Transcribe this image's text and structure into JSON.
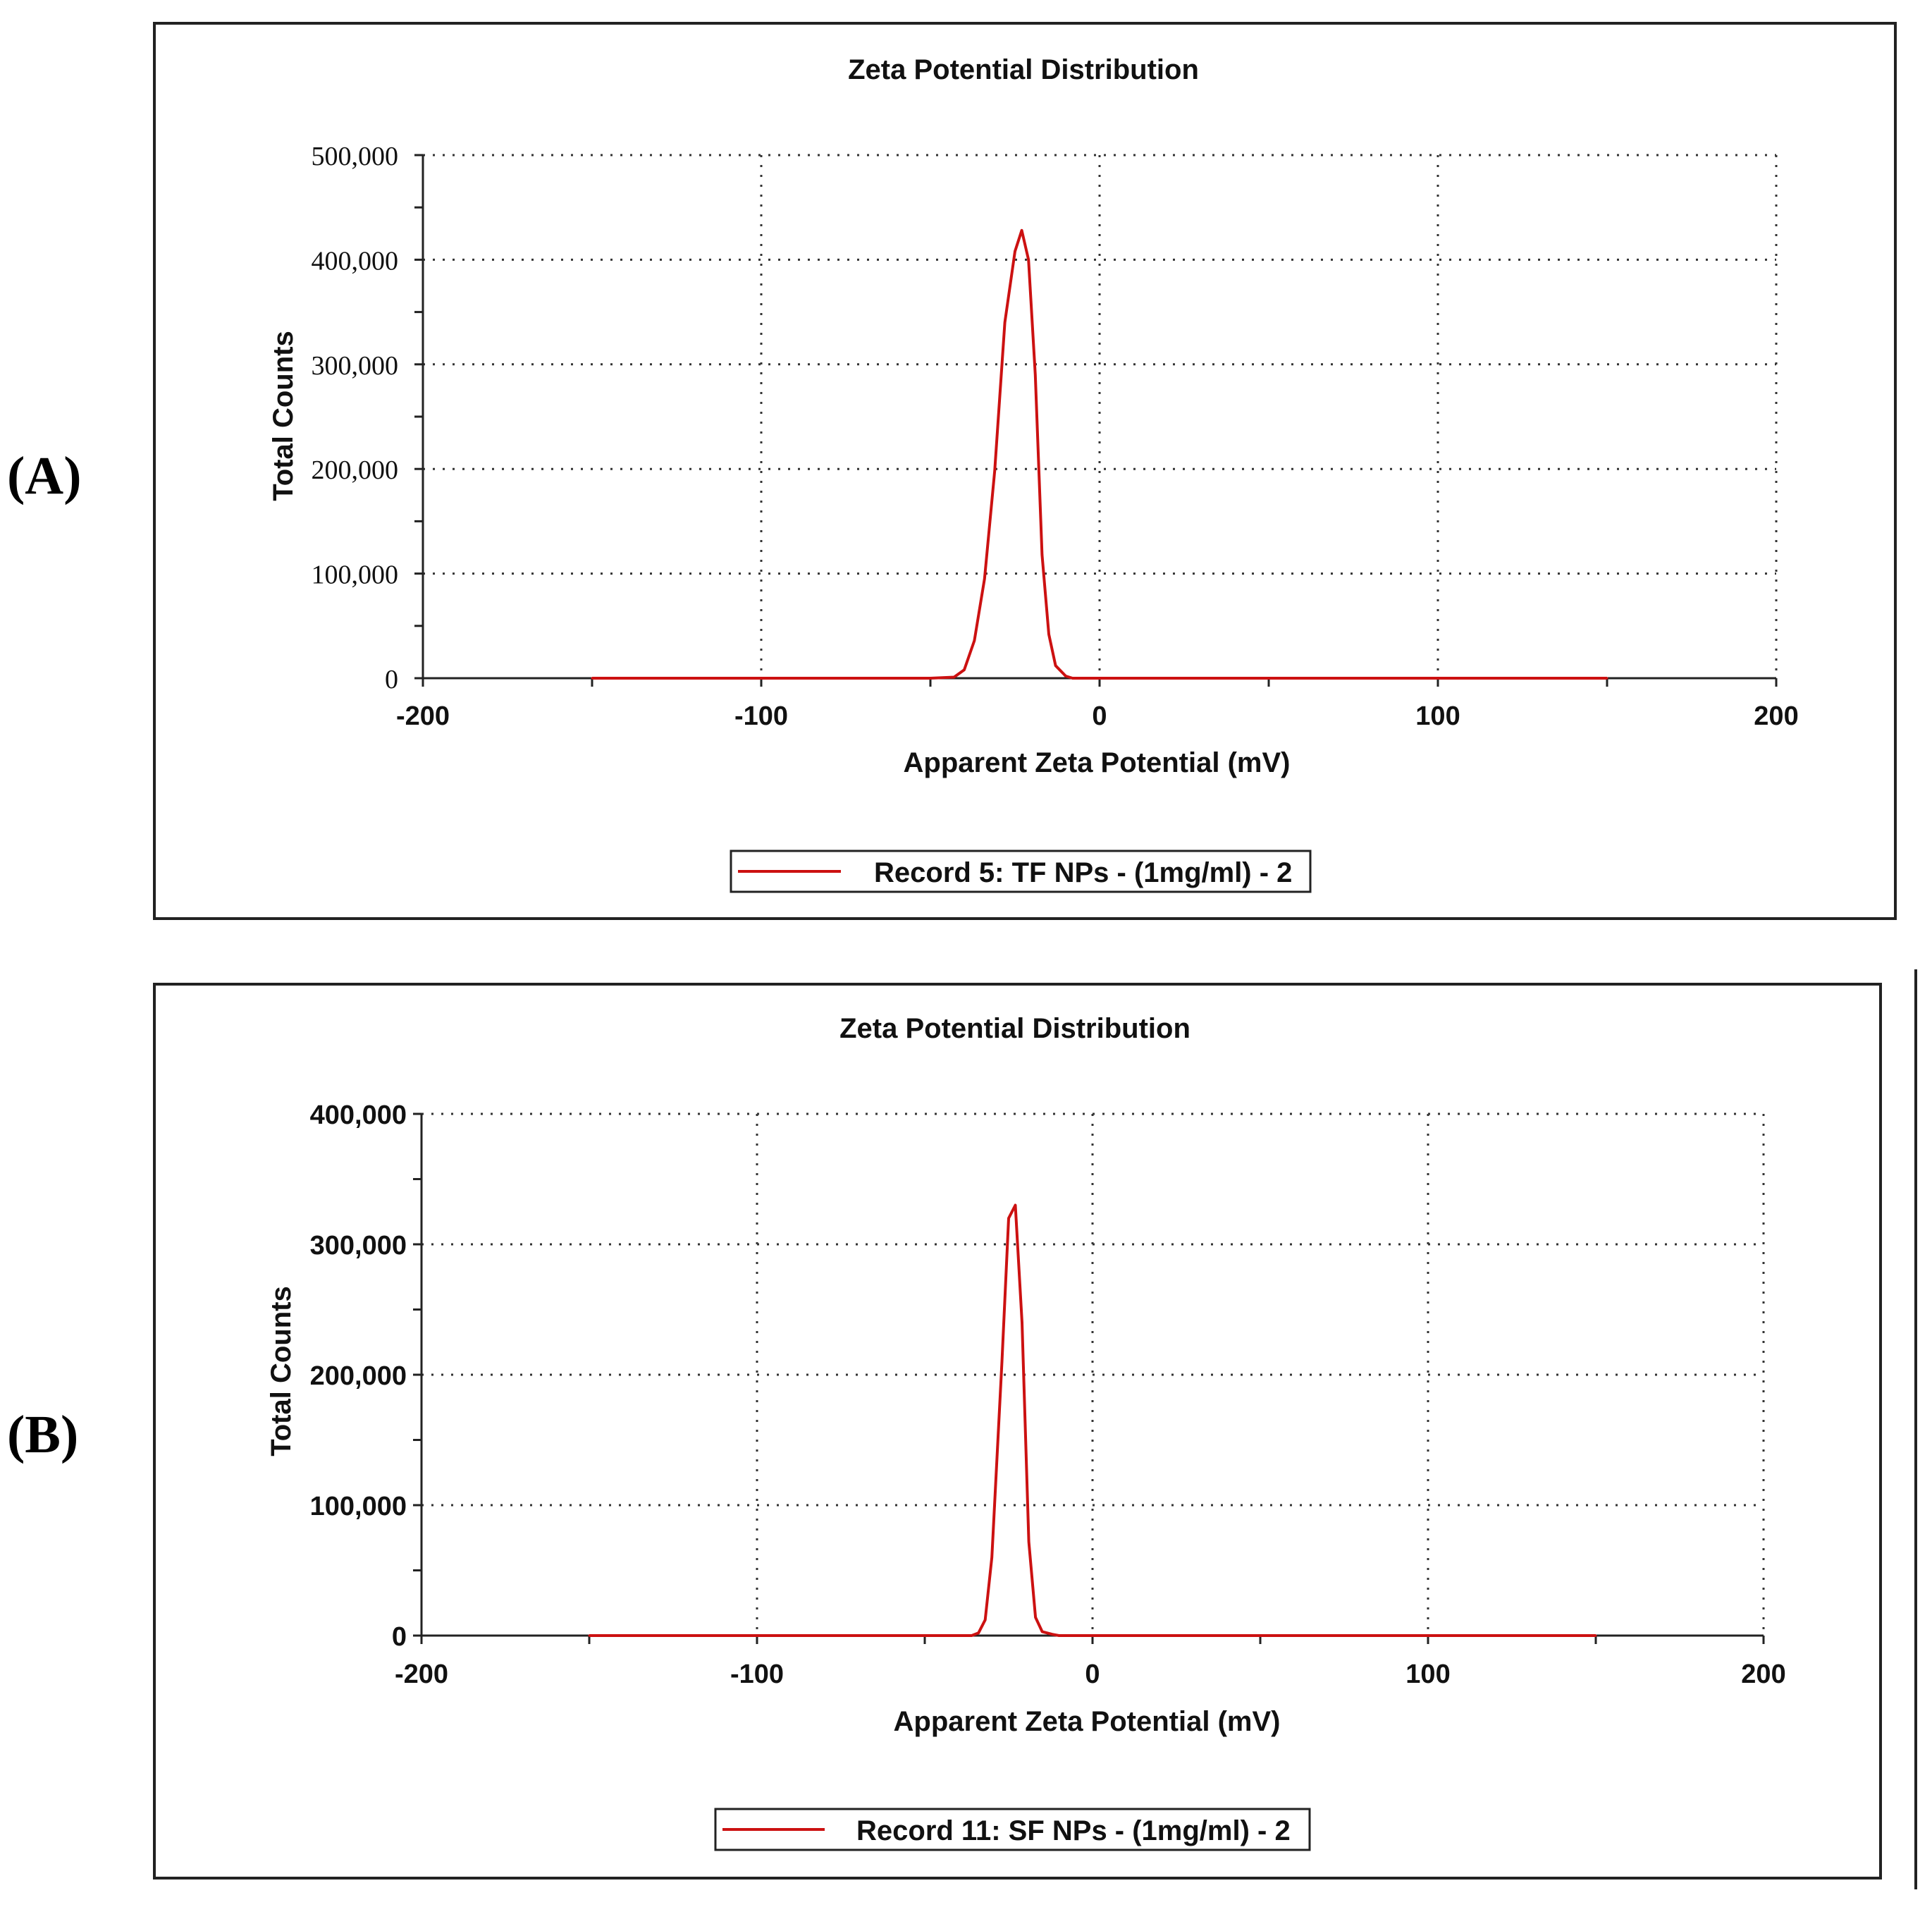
{
  "colors": {
    "series": "#cc1111",
    "frame": "#222222",
    "grid": "#333333"
  },
  "chart_data": [
    {
      "panel_label": "(A)",
      "type": "line",
      "title": "Zeta Potential Distribution",
      "xlabel": "Apparent Zeta Potential (mV)",
      "ylabel": "Total Counts",
      "xlim": [
        -200,
        200
      ],
      "ylim": [
        0,
        500000
      ],
      "xticks": [
        -200,
        -100,
        0,
        100,
        200
      ],
      "xtick_labels": [
        "-200",
        "-100",
        "0",
        "100",
        "200"
      ],
      "yticks": [
        0,
        100000,
        200000,
        300000,
        400000,
        500000
      ],
      "ytick_labels": [
        "0",
        "100,000",
        "200,000",
        "300,000",
        "400,000",
        "500,000"
      ],
      "grid": true,
      "legend": "bottom-center",
      "series": [
        {
          "name": "Record 5: TF NPs - (1mg/ml) -  2",
          "x": [
            -150,
            -100,
            -50,
            -43,
            -40,
            -37,
            -34,
            -31,
            -28,
            -25,
            -23,
            -21,
            -19,
            -17,
            -15,
            -13,
            -10,
            -8,
            -5,
            0,
            50,
            100,
            150
          ],
          "y": [
            0,
            0,
            0,
            1000,
            8000,
            36000,
            95000,
            198000,
            340000,
            408000,
            428000,
            400000,
            290000,
            118000,
            42000,
            12000,
            2000,
            0,
            0,
            0,
            0,
            0,
            0
          ]
        }
      ]
    },
    {
      "panel_label": "(B)",
      "type": "line",
      "title": "Zeta Potential Distribution",
      "xlabel": "Apparent Zeta Potential (mV)",
      "ylabel": "Total Counts",
      "xlim": [
        -200,
        200
      ],
      "ylim": [
        0,
        400000
      ],
      "xticks": [
        -200,
        -100,
        0,
        100,
        200
      ],
      "xtick_labels": [
        "-200",
        "-100",
        "0",
        "100",
        "200"
      ],
      "yticks": [
        0,
        100000,
        200000,
        300000,
        400000
      ],
      "ytick_labels": [
        "0",
        "100,000",
        "200,000",
        "300,000",
        "400,000"
      ],
      "grid": true,
      "legend": "bottom-center",
      "series": [
        {
          "name": "Record 11: SF NPs - (1mg/ml) -  2",
          "x": [
            -150,
            -100,
            -50,
            -36,
            -34,
            -32,
            -30,
            -27,
            -25,
            -23,
            -21,
            -19,
            -17,
            -15,
            -12,
            -10,
            -8,
            0,
            50,
            100,
            150
          ],
          "y": [
            0,
            0,
            0,
            0,
            2000,
            12000,
            60000,
            210000,
            320000,
            330000,
            240000,
            72000,
            14000,
            3000,
            1000,
            0,
            0,
            0,
            0,
            0,
            0
          ]
        }
      ]
    }
  ]
}
